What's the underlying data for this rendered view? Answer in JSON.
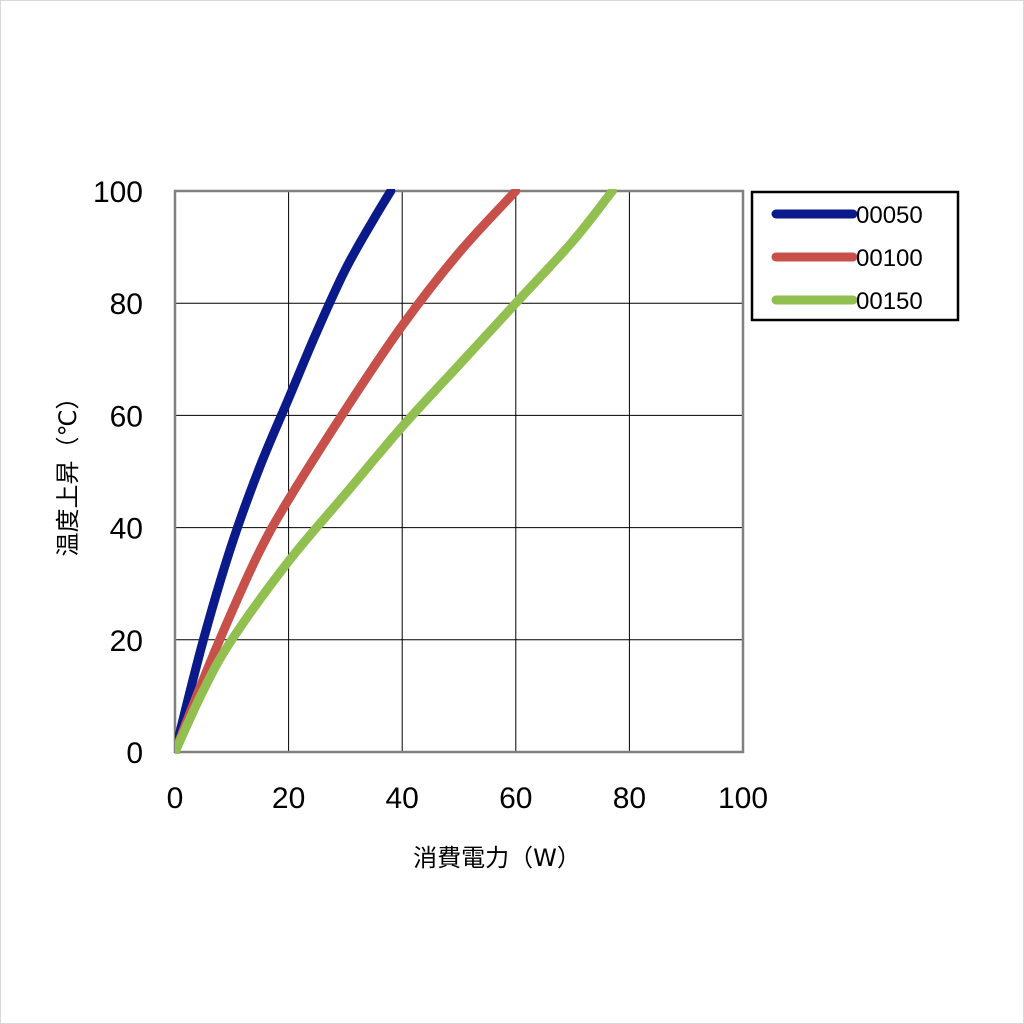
{
  "chart_data": {
    "type": "line",
    "title": "",
    "xlabel": "消費電力（W）",
    "ylabel": "温度上昇（℃）",
    "xlim": [
      0,
      100
    ],
    "ylim": [
      0,
      100
    ],
    "x_ticks": [
      "0",
      "20",
      "40",
      "60",
      "80",
      "100"
    ],
    "y_ticks": [
      "0",
      "20",
      "40",
      "60",
      "80",
      "100"
    ],
    "grid": true,
    "legend_position": "right-top",
    "series": [
      {
        "name": "00050",
        "color": "#0b1a8a",
        "points": [
          [
            0,
            0
          ],
          [
            5,
            20
          ],
          [
            10,
            37
          ],
          [
            15,
            51
          ],
          [
            20,
            63
          ],
          [
            25,
            75
          ],
          [
            30,
            86
          ],
          [
            35,
            95
          ],
          [
            38,
            100
          ]
        ]
      },
      {
        "name": "00100",
        "color": "#c8504b",
        "points": [
          [
            0,
            0
          ],
          [
            5,
            13
          ],
          [
            10,
            25
          ],
          [
            15,
            36
          ],
          [
            20,
            45
          ],
          [
            30,
            61
          ],
          [
            40,
            76
          ],
          [
            50,
            89
          ],
          [
            60,
            100
          ]
        ]
      },
      {
        "name": "00150",
        "color": "#92c050",
        "points": [
          [
            0,
            0
          ],
          [
            5,
            11
          ],
          [
            10,
            20
          ],
          [
            20,
            34
          ],
          [
            30,
            46
          ],
          [
            40,
            58
          ],
          [
            50,
            69
          ],
          [
            60,
            80
          ],
          [
            70,
            91
          ],
          [
            77,
            100
          ]
        ]
      }
    ]
  }
}
